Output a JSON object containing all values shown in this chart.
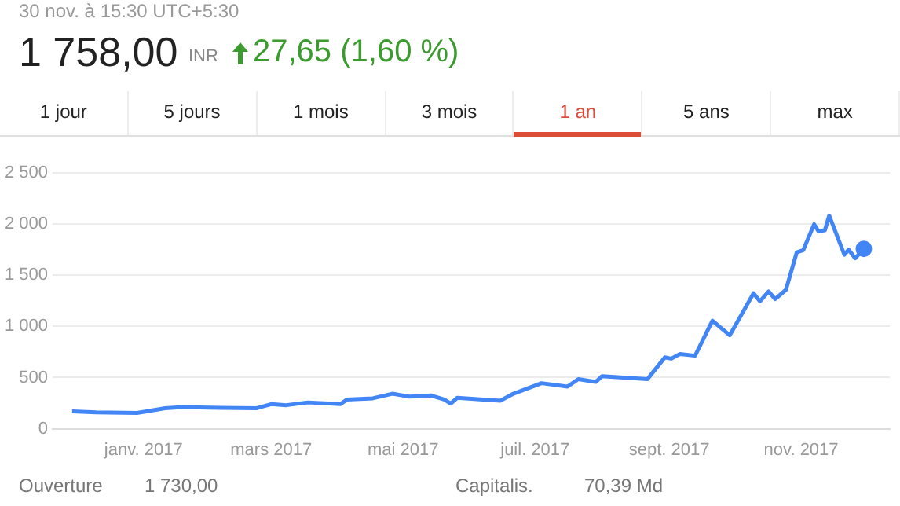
{
  "chart_data": {
    "type": "line",
    "x": [
      "2016-11-29",
      "2016-12-10",
      "2016-12-29",
      "2017-01-11",
      "2017-01-18",
      "2017-02-05",
      "2017-02-22",
      "2017-03-01",
      "2017-03-08",
      "2017-03-18",
      "2017-04-02",
      "2017-04-05",
      "2017-04-17",
      "2017-04-26",
      "2017-05-04",
      "2017-05-14",
      "2017-05-20",
      "2017-05-23",
      "2017-05-26",
      "2017-06-15",
      "2017-06-21",
      "2017-07-04",
      "2017-07-16",
      "2017-07-21",
      "2017-07-29",
      "2017-08-01",
      "2017-08-22",
      "2017-08-30",
      "2017-09-02",
      "2017-09-06",
      "2017-09-13",
      "2017-09-21",
      "2017-09-29",
      "2017-10-10",
      "2017-10-13",
      "2017-10-17",
      "2017-10-20",
      "2017-10-25",
      "2017-10-30",
      "2017-11-02",
      "2017-11-07",
      "2017-11-09",
      "2017-11-12",
      "2017-11-14",
      "2017-11-21",
      "2017-11-23",
      "2017-11-26",
      "2017-11-30"
    ],
    "series": [
      {
        "color": "#4285f4",
        "values": [
          170,
          160,
          155,
          200,
          210,
          205,
          200,
          240,
          230,
          257,
          240,
          285,
          297,
          342,
          314,
          325,
          285,
          245,
          302,
          274,
          342,
          445,
          411,
          485,
          457,
          514,
          485,
          697,
          685,
          731,
          714,
          1056,
          913,
          1324,
          1245,
          1341,
          1267,
          1358,
          1724,
          1745,
          1998,
          1930,
          1940,
          2083,
          1700,
          1750,
          1666,
          1758
        ]
      }
    ],
    "xlim": [
      "2016-11-20",
      "2017-12-12"
    ],
    "xticks": [
      {
        "value": "2017-01-01",
        "label": "janv. 2017"
      },
      {
        "value": "2017-03-01",
        "label": "mars 2017"
      },
      {
        "value": "2017-05-01",
        "label": "mai 2017"
      },
      {
        "value": "2017-07-01",
        "label": "juil. 2017"
      },
      {
        "value": "2017-09-01",
        "label": "sept. 2017"
      },
      {
        "value": "2017-11-01",
        "label": "nov. 2017"
      }
    ],
    "ylim": [
      0,
      2500
    ],
    "yticks": [
      0,
      500,
      {
        "value": 1000,
        "label": "1 000"
      },
      {
        "value": 1500,
        "label": "1 500"
      },
      {
        "value": 2000,
        "label": "2 000"
      },
      {
        "value": 2500,
        "label": "2 500"
      }
    ],
    "grid": "y",
    "legend": false,
    "line_style": "solid",
    "annotations": [
      "30 nov. à 15:30 UTC+5:30",
      "1 758,00",
      "INR",
      "27,65 (1,60 %)",
      "1 jour",
      "5 jours",
      "1 mois",
      "3 mois",
      "1 an",
      "5 ans",
      "max",
      "Ouverture",
      "1 730,00",
      "Capitalis.",
      "70,39 Md"
    ]
  }
}
